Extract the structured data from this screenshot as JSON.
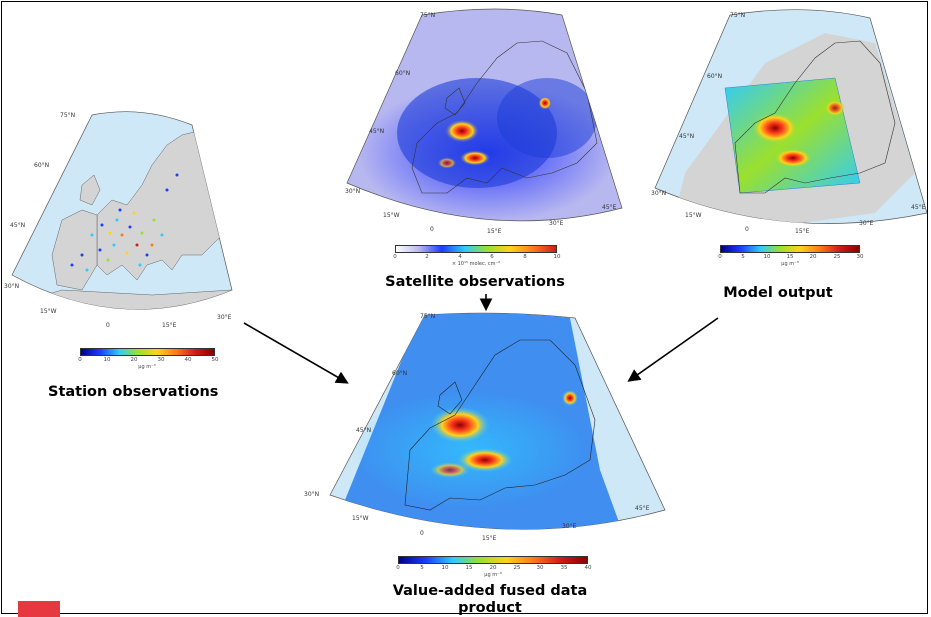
{
  "captions": {
    "station": "Station observations",
    "satellite": "Satellite observations",
    "model": "Model output",
    "fused_line1": "Value-added fused data",
    "fused_line2": "product"
  },
  "colorbars": {
    "station": {
      "ticks": [
        "0",
        "10",
        "20",
        "30",
        "40",
        "50"
      ],
      "unit": "μg m⁻³"
    },
    "satellite": {
      "ticks": [
        "0",
        "2",
        "4",
        "6",
        "8",
        "10"
      ],
      "unit": "× 10¹⁵ molec. cm⁻²"
    },
    "model": {
      "ticks": [
        "0",
        "5",
        "10",
        "15",
        "20",
        "25",
        "30"
      ],
      "unit": "μg m⁻³"
    },
    "fused": {
      "ticks": [
        "0",
        "5",
        "10",
        "15",
        "20",
        "25",
        "30",
        "35",
        "40"
      ],
      "unit": "μg m⁻³"
    }
  },
  "map_labels": {
    "lat75": "75°N",
    "lat60": "60°N",
    "lat45": "45°N",
    "lat30": "30°N",
    "lon15w": "15°W",
    "lon0": "0",
    "lon15e": "15°E",
    "lon30e": "30°E",
    "lon45e": "45°E"
  },
  "colors": {
    "ocean": "#cfe8f7",
    "land": "#d4d4d4",
    "satellite_bg": "#b8b8f0",
    "fused_bg": "#3f8ef0",
    "arrow": "#000000",
    "stamp": "#e8383f"
  },
  "icons": {
    "arrow": "arrow-icon"
  }
}
